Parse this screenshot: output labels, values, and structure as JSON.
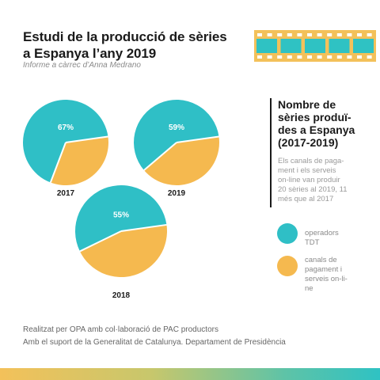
{
  "header": {
    "title": "Estudi de la producció de sèries\na Espanya l’any 2019",
    "subtitle": "Informe a càrrec d’Anna Medrano"
  },
  "colors": {
    "tdt": "#2fbfc6",
    "pay": "#f5b94f",
    "film": "#f3c15a",
    "film_frame": "#2fc2c3"
  },
  "icon": "film-strip-icon",
  "chart_data": {
    "type": "pie",
    "series_labels": [
      "operadors TDT",
      "canals de pagament i serveis on-line"
    ],
    "pies": [
      {
        "year": "2017",
        "values": [
          67,
          33
        ],
        "label": "67%"
      },
      {
        "year": "2019",
        "values": [
          59,
          41
        ],
        "label": "59%"
      },
      {
        "year": "2018",
        "values": [
          55,
          45
        ],
        "label": "55%"
      }
    ]
  },
  "side": {
    "title": "Nombre de\nsèries produï-\ndes a Espanya\n(2017-2019)",
    "description": "Els canals de paga-\nment i els serveis\non-line van produir\n20 sèries al 2019, 11\nmés que al 2017"
  },
  "legend": [
    {
      "label": "operadors\nTDT"
    },
    {
      "label": "canals de\npagament i\nserveis on-li-\nne"
    }
  ],
  "footer": {
    "line1": "Realitzat per OPA amb col·laboració de PAC productors",
    "line2": "Amb el suport de la Generalitat de Catalunya. Departament de Presidència"
  }
}
